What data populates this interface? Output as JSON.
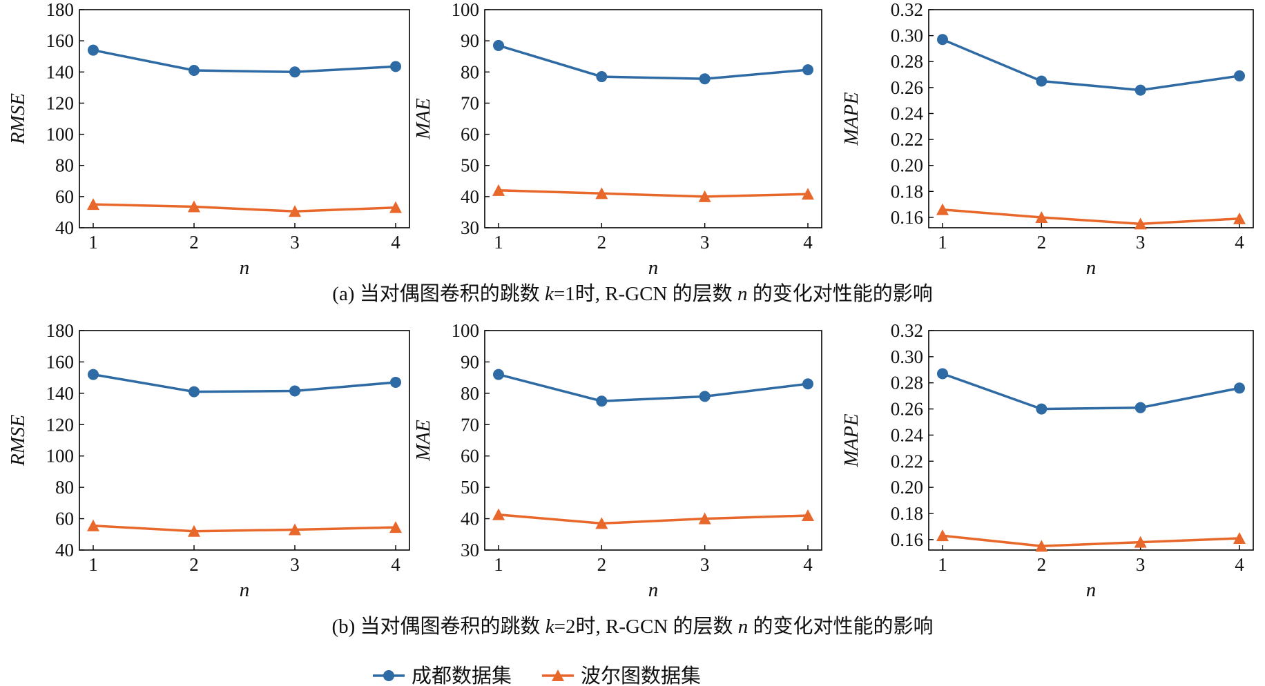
{
  "colors": {
    "chengdu": "#2e6aa3",
    "porto": "#e8672a",
    "axis": "#000000"
  },
  "legend": {
    "items": [
      {
        "label": "成都数据集",
        "series": 0,
        "marker": "circle"
      },
      {
        "label": "波尔图数据集",
        "series": 1,
        "marker": "triangle"
      }
    ]
  },
  "captions": {
    "a": {
      "prefix": "(a) 当对偶图卷积的跳数 ",
      "k": "k",
      "mid": "=1时, R-GCN 的层数 ",
      "n": "n",
      "suffix": " 的变化对性能的影响"
    },
    "b": {
      "prefix": "(b) 当对偶图卷积的跳数 ",
      "k": "k",
      "mid": "=2时, R-GCN 的层数 ",
      "n": "n",
      "suffix": " 的变化对性能的影响"
    }
  },
  "chart_data": [
    {
      "type": "line",
      "panel": "a",
      "xlabel": "n",
      "ylabel": "RMSE",
      "x": [
        1,
        2,
        3,
        4
      ],
      "ylim": [
        40,
        180
      ],
      "yticks": [
        40,
        60,
        80,
        100,
        120,
        140,
        160,
        180
      ],
      "ytick_labels": [
        "40",
        "60",
        "80",
        "100",
        "120",
        "140",
        "160",
        "180"
      ],
      "series": [
        {
          "name": "成都数据集",
          "values": [
            154,
            141,
            140,
            143.5
          ]
        },
        {
          "name": "波尔图数据集",
          "values": [
            55,
            53.5,
            50.5,
            53
          ]
        }
      ]
    },
    {
      "type": "line",
      "panel": "a",
      "xlabel": "n",
      "ylabel": "MAE",
      "x": [
        1,
        2,
        3,
        4
      ],
      "ylim": [
        30,
        100
      ],
      "yticks": [
        30,
        40,
        50,
        60,
        70,
        80,
        90,
        100
      ],
      "ytick_labels": [
        "30",
        "40",
        "50",
        "60",
        "70",
        "80",
        "90",
        "100"
      ],
      "series": [
        {
          "name": "成都数据集",
          "values": [
            88.5,
            78.5,
            77.8,
            80.7
          ]
        },
        {
          "name": "波尔图数据集",
          "values": [
            42,
            41,
            40,
            40.8
          ]
        }
      ]
    },
    {
      "type": "line",
      "panel": "a",
      "xlabel": "n",
      "ylabel": "MAPE",
      "x": [
        1,
        2,
        3,
        4
      ],
      "ylim": [
        0.152,
        0.32
      ],
      "yticks": [
        0.16,
        0.18,
        0.2,
        0.22,
        0.24,
        0.26,
        0.28,
        0.3,
        0.32
      ],
      "ytick_labels": [
        "0.16",
        "0.18",
        "0.20",
        "0.22",
        "0.24",
        "0.26",
        "0.28",
        "0.30",
        "0.32"
      ],
      "series": [
        {
          "name": "成都数据集",
          "values": [
            0.297,
            0.265,
            0.258,
            0.269
          ]
        },
        {
          "name": "波尔图数据集",
          "values": [
            0.166,
            0.16,
            0.155,
            0.159
          ]
        }
      ]
    },
    {
      "type": "line",
      "panel": "b",
      "xlabel": "n",
      "ylabel": "RMSE",
      "x": [
        1,
        2,
        3,
        4
      ],
      "ylim": [
        40,
        180
      ],
      "yticks": [
        40,
        60,
        80,
        100,
        120,
        140,
        160,
        180
      ],
      "ytick_labels": [
        "40",
        "60",
        "80",
        "100",
        "120",
        "140",
        "160",
        "180"
      ],
      "series": [
        {
          "name": "成都数据集",
          "values": [
            152,
            141,
            141.5,
            147
          ]
        },
        {
          "name": "波尔图数据集",
          "values": [
            55.5,
            52,
            53,
            54.5
          ]
        }
      ]
    },
    {
      "type": "line",
      "panel": "b",
      "xlabel": "n",
      "ylabel": "MAE",
      "x": [
        1,
        2,
        3,
        4
      ],
      "ylim": [
        30,
        100
      ],
      "yticks": [
        30,
        40,
        50,
        60,
        70,
        80,
        90,
        100
      ],
      "ytick_labels": [
        "30",
        "40",
        "50",
        "60",
        "70",
        "80",
        "90",
        "100"
      ],
      "series": [
        {
          "name": "成都数据集",
          "values": [
            86,
            77.5,
            79,
            83
          ]
        },
        {
          "name": "波尔图数据集",
          "values": [
            41.3,
            38.5,
            40,
            41
          ]
        }
      ]
    },
    {
      "type": "line",
      "panel": "b",
      "xlabel": "n",
      "ylabel": "MAPE",
      "x": [
        1,
        2,
        3,
        4
      ],
      "ylim": [
        0.152,
        0.32
      ],
      "yticks": [
        0.16,
        0.18,
        0.2,
        0.22,
        0.24,
        0.26,
        0.28,
        0.3,
        0.32
      ],
      "ytick_labels": [
        "0.16",
        "0.18",
        "0.20",
        "0.22",
        "0.24",
        "0.26",
        "0.28",
        "0.30",
        "0.32"
      ],
      "series": [
        {
          "name": "成都数据集",
          "values": [
            0.287,
            0.26,
            0.261,
            0.276
          ]
        },
        {
          "name": "波尔图数据集",
          "values": [
            0.163,
            0.155,
            0.158,
            0.161
          ]
        }
      ]
    }
  ]
}
